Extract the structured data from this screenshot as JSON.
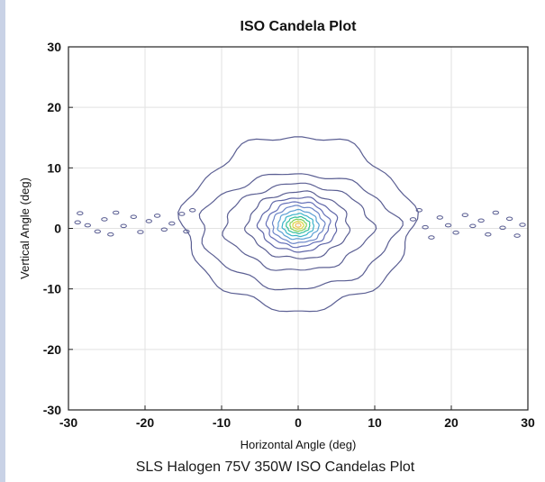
{
  "caption": "SLS Halogen 75V 350W ISO Candelas Plot",
  "chart_data": {
    "type": "contour",
    "title": "ISO Candela Plot",
    "xlabel": "Horizontal Angle (deg)",
    "ylabel": "Vertical Angle (deg)",
    "xlim": [
      -30,
      30
    ],
    "ylim": [
      -30,
      30
    ],
    "xticks": [
      -30,
      -20,
      -10,
      0,
      10,
      20,
      30
    ],
    "yticks": [
      -30,
      -20,
      -10,
      0,
      10,
      20,
      30
    ],
    "grid": true,
    "contours": [
      {
        "color": "#5b5f93",
        "cx": 0,
        "cy": 0.5,
        "rx": 14,
        "ry_top": 14.8,
        "ry_bottom": 14
      },
      {
        "color": "#5b5f93",
        "cx": 0,
        "cy": 0.5,
        "rx": 12,
        "ry_top": 8.5,
        "ry_bottom": 10.5
      },
      {
        "color": "#5b5f93",
        "cx": 0,
        "cy": 0.5,
        "rx": 9,
        "ry_top": 6.8,
        "ry_bottom": 7.5
      },
      {
        "color": "#5b5f93",
        "cx": 0,
        "cy": 0.5,
        "rx": 6.5,
        "ry_top": 5.5,
        "ry_bottom": 5.5
      },
      {
        "color": "#5f66a8",
        "cx": 0,
        "cy": 0.5,
        "rx": 5,
        "ry_top": 4.6,
        "ry_bottom": 4.3
      },
      {
        "color": "#6570b8",
        "cx": 0,
        "cy": 0.5,
        "rx": 4,
        "ry_top": 3.9,
        "ry_bottom": 3.5
      },
      {
        "color": "#6c86c8",
        "cx": 0,
        "cy": 0.5,
        "rx": 3.3,
        "ry_top": 3.2,
        "ry_bottom": 2.9
      },
      {
        "color": "#5b9fd4",
        "cx": 0,
        "cy": 0.5,
        "rx": 2.6,
        "ry_top": 2.5,
        "ry_bottom": 2.3
      },
      {
        "color": "#3bb3c9",
        "cx": 0,
        "cy": 0.5,
        "rx": 2.0,
        "ry_top": 1.9,
        "ry_bottom": 1.8
      },
      {
        "color": "#2fbf9a",
        "cx": 0,
        "cy": 0.5,
        "rx": 1.5,
        "ry_top": 1.4,
        "ry_bottom": 1.3
      },
      {
        "color": "#7fd05a",
        "cx": 0,
        "cy": 0.5,
        "rx": 1.05,
        "ry_top": 1.0,
        "ry_bottom": 0.95
      },
      {
        "color": "#d8d640",
        "cx": 0,
        "cy": 0.5,
        "rx": 0.7,
        "ry_top": 0.65,
        "ry_bottom": 0.6
      },
      {
        "color": "#f0c060",
        "cx": 0,
        "cy": 0.5,
        "rx": 0.35,
        "ry_top": 0.35,
        "ry_bottom": 0.3
      }
    ],
    "scatter_islands": [
      [
        -28.5,
        2.5
      ],
      [
        -28.8,
        1.0
      ],
      [
        -27.5,
        0.5
      ],
      [
        -26.2,
        -0.5
      ],
      [
        -25.3,
        1.5
      ],
      [
        -24.5,
        -1.0
      ],
      [
        -23.8,
        2.6
      ],
      [
        -22.8,
        0.4
      ],
      [
        -21.5,
        1.9
      ],
      [
        -20.6,
        -0.6
      ],
      [
        -19.5,
        1.2
      ],
      [
        -18.4,
        2.1
      ],
      [
        -17.5,
        -0.2
      ],
      [
        -16.5,
        0.8
      ],
      [
        -15.2,
        2.4
      ],
      [
        -14.6,
        -0.5
      ],
      [
        -13.8,
        3.0
      ],
      [
        15.0,
        1.5
      ],
      [
        15.8,
        3.0
      ],
      [
        16.6,
        0.2
      ],
      [
        17.4,
        -1.5
      ],
      [
        18.5,
        1.8
      ],
      [
        19.6,
        0.5
      ],
      [
        20.6,
        -0.7
      ],
      [
        21.8,
        2.2
      ],
      [
        22.8,
        0.4
      ],
      [
        23.9,
        1.3
      ],
      [
        24.8,
        -1.0
      ],
      [
        25.8,
        2.6
      ],
      [
        26.7,
        0.1
      ],
      [
        27.6,
        1.6
      ],
      [
        28.6,
        -1.2
      ],
      [
        29.3,
        0.6
      ]
    ]
  }
}
